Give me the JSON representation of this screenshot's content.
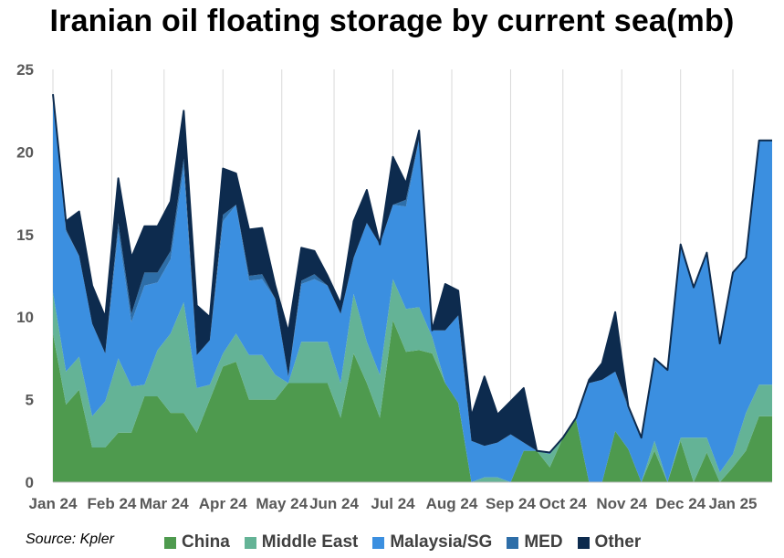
{
  "chart_data": {
    "type": "area",
    "stacked": true,
    "title": "Iranian oil floating storage by current sea(mb)",
    "source": "Source: Kpler",
    "ylim": [
      0,
      25
    ],
    "yticks": [
      0,
      5,
      10,
      15,
      20,
      25
    ],
    "xlabels": [
      "Jan 24",
      "Feb 24",
      "Mar 24",
      "Apr 24",
      "May 24",
      "Jun 24",
      "Jul 24",
      "Aug 24",
      "Sep 24",
      "Oct 24",
      "Nov 24",
      "Dec 24",
      "Jan 25"
    ],
    "label_positions": [
      0,
      4.5,
      8.5,
      13,
      17.5,
      21.5,
      26,
      30.5,
      35,
      39,
      43.5,
      48,
      52
    ],
    "grid": "vertical",
    "legend_position": "bottom",
    "x": [
      0,
      1,
      2,
      3,
      4,
      5,
      6,
      7,
      8,
      9,
      10,
      11,
      12,
      13,
      14,
      15,
      16,
      17,
      18,
      19,
      20,
      21,
      22,
      23,
      24,
      25,
      26,
      27,
      28,
      29,
      30,
      31,
      32,
      33,
      34,
      35,
      36,
      37,
      38,
      39,
      40,
      41,
      42,
      43,
      44,
      45,
      46,
      47,
      48,
      49,
      50,
      51,
      52,
      53,
      54,
      55
    ],
    "series": [
      {
        "name": "China",
        "color": "#4e9a4e",
        "values": [
          9.0,
          4.7,
          5.6,
          2.1,
          2.1,
          3.0,
          3.0,
          5.2,
          5.2,
          4.2,
          4.2,
          3.0,
          5.0,
          7.0,
          7.3,
          5.0,
          5.0,
          5.0,
          6.0,
          6.0,
          6.0,
          6.0,
          3.9,
          7.8,
          6.0,
          3.9,
          9.8,
          7.9,
          8.0,
          7.8,
          6.0,
          4.8,
          0,
          0,
          0,
          0,
          1.9,
          1.9,
          0.9,
          2.7,
          3.8,
          0,
          0,
          3.1,
          2.0,
          0,
          1.9,
          0,
          2.5,
          0,
          1.8,
          0,
          0.9,
          1.9,
          4.0,
          4.0
        ]
      },
      {
        "name": "Middle East",
        "color": "#64b396",
        "values": [
          2.5,
          2.0,
          2.0,
          1.9,
          2.8,
          4.5,
          2.8,
          0.7,
          2.8,
          4.8,
          6.7,
          2.7,
          0.9,
          0.8,
          1.7,
          2.7,
          2.7,
          1.5,
          0,
          2.5,
          2.5,
          2.5,
          2.1,
          3.6,
          2.5,
          2.6,
          2.5,
          2.6,
          2.6,
          1.0,
          0,
          0,
          0,
          0.3,
          0.3,
          0,
          0,
          0,
          0.8,
          0,
          0,
          0,
          0,
          0,
          0,
          0,
          0.6,
          0,
          0.2,
          2.7,
          0.9,
          0.6,
          0.8,
          2.3,
          1.9,
          1.9
        ]
      },
      {
        "name": "Malaysia/SG",
        "color": "#3b8fe0",
        "values": [
          11.9,
          8.5,
          6.1,
          5.6,
          2.9,
          7.7,
          3.9,
          6.0,
          4.1,
          4.5,
          8.2,
          2.0,
          2.7,
          8.0,
          7.8,
          4.5,
          4.6,
          4.6,
          0.4,
          3.5,
          3.8,
          3.4,
          4.2,
          2.2,
          7.2,
          7.9,
          4.5,
          6.2,
          10.2,
          0.4,
          3.2,
          5.3,
          2.5,
          1.9,
          2.1,
          2.9,
          0.5,
          0,
          0.1,
          0,
          0,
          6.0,
          6.2,
          3.6,
          2.4,
          2.7,
          5.0,
          6.8,
          11.7,
          9.1,
          11.2,
          7.8,
          11.0,
          9.4,
          14.8,
          14.8
        ]
      },
      {
        "name": "MED",
        "color": "#2e6ea8",
        "values": [
          0,
          0.1,
          0,
          0,
          0,
          0.5,
          0.5,
          0.8,
          0.6,
          0.5,
          0.5,
          0,
          0,
          0.4,
          0,
          0.3,
          0.3,
          0,
          0,
          0.2,
          0.3,
          0,
          0,
          0,
          0,
          0,
          0,
          0.4,
          0,
          0,
          0,
          0,
          0,
          0,
          0,
          0,
          0,
          0,
          0,
          0,
          0,
          0,
          0,
          0,
          0.2,
          0,
          0,
          0,
          0,
          0,
          0,
          0,
          0,
          0,
          0,
          0
        ]
      },
      {
        "name": "Other",
        "color": "#0d2b4e",
        "values": [
          0.1,
          0.5,
          2.7,
          2.3,
          2.2,
          2.7,
          3.4,
          2.8,
          2.8,
          3.0,
          2.9,
          3.0,
          1.4,
          2.8,
          1.9,
          2.8,
          2.8,
          0.8,
          2.7,
          2.0,
          1.4,
          0.6,
          0.6,
          2.2,
          2.0,
          0,
          2.9,
          1.0,
          0.5,
          0,
          2.8,
          1.5,
          1.5,
          4.2,
          1.7,
          2.0,
          3.3,
          0,
          0,
          0,
          0.1,
          0.2,
          1.0,
          3.6,
          0,
          0,
          0,
          0,
          0,
          0,
          0,
          0,
          0,
          0,
          0,
          0
        ]
      }
    ]
  }
}
